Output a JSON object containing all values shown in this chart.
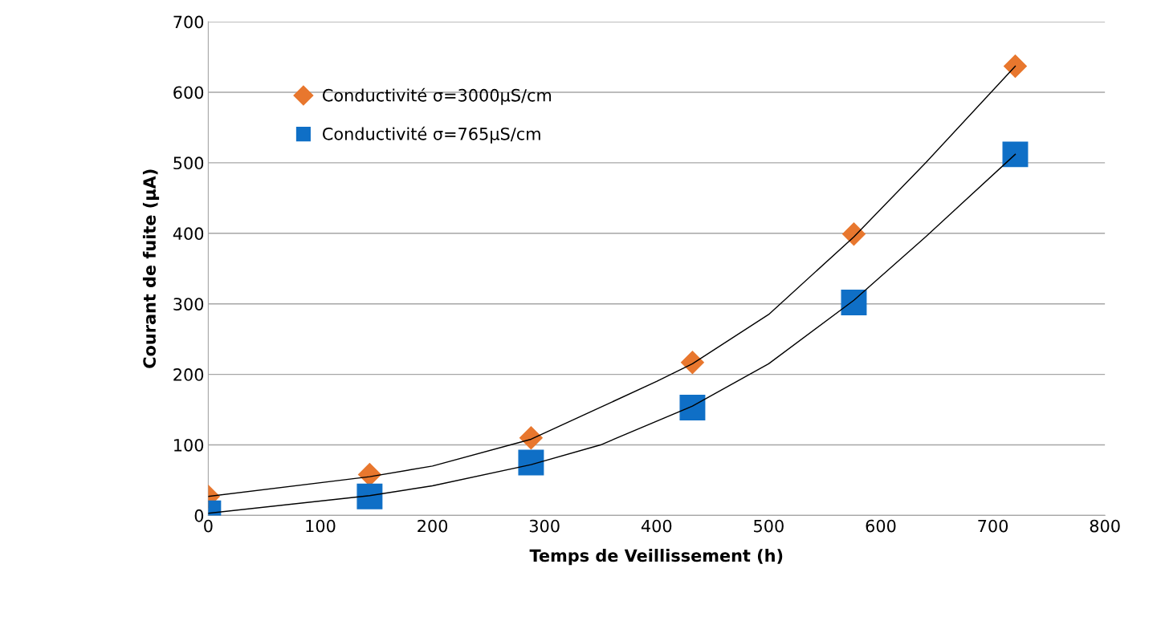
{
  "chart_data": {
    "type": "scatter",
    "xlabel": "Temps de Veillissement (h)",
    "ylabel": "Courant de fuite (µA)",
    "xlim": [
      0,
      800
    ],
    "xticks": [
      0,
      100,
      200,
      300,
      400,
      500,
      600,
      700,
      800
    ],
    "ylim": [
      0,
      700
    ],
    "yticks": [
      0,
      100,
      200,
      300,
      400,
      500,
      600,
      700
    ],
    "grid": "y",
    "legend": "top left",
    "x": [
      0,
      144,
      288,
      432,
      576,
      720
    ],
    "series": [
      {
        "name": "Conductivité σ=3000µS/cm",
        "color": "#e8772e",
        "marker": "diamond",
        "values": [
          27,
          58,
          110,
          217,
          399,
          637
        ]
      },
      {
        "name": "Conductivité σ=765µS/cm",
        "color": "#0f6fc6",
        "marker": "square",
        "values": [
          3,
          27,
          75,
          153,
          302,
          512
        ]
      },
      {
        "type": "line",
        "color": "#000000",
        "marker": "none",
        "x": [
          0,
          144,
          200,
          288,
          400,
          432,
          500,
          576,
          640,
          720
        ],
        "values": [
          27,
          55,
          70,
          108,
          190,
          215,
          285,
          395,
          500,
          637
        ]
      },
      {
        "type": "line",
        "color": "#000000",
        "marker": "none",
        "x": [
          0,
          144,
          200,
          288,
          350,
          432,
          500,
          576,
          640,
          720
        ],
        "values": [
          3,
          28,
          42,
          72,
          100,
          155,
          215,
          305,
          395,
          512
        ]
      }
    ]
  }
}
